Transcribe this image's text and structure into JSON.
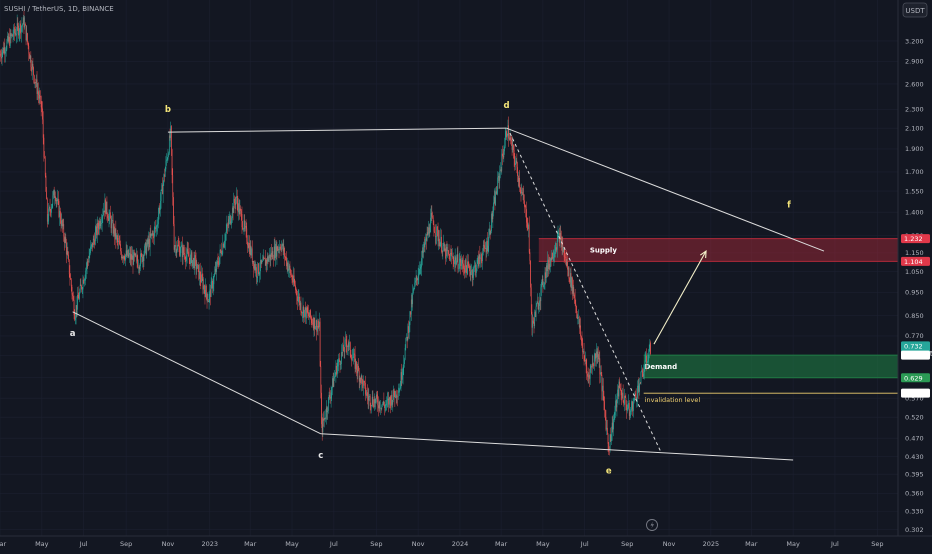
{
  "header": {
    "symbol": "SUSHI / TetherUS, 1D, BINANCE",
    "currency_button": "USDT"
  },
  "colors": {
    "background": "#131722",
    "up": "#26a69a",
    "down": "#ef5350",
    "supply": "#b22a3a",
    "demand": "#1e7a43",
    "lines": "#d8d8d8"
  },
  "chart_data": {
    "type": "candlestick",
    "price_axis": {
      "scale": "log",
      "range": [
        0.293,
        3.9
      ],
      "ticks": [
        3.2,
        2.9,
        2.6,
        2.3,
        2.1,
        1.9,
        1.7,
        1.55,
        1.4,
        1.25,
        1.15,
        1.05,
        0.95,
        0.85,
        0.77,
        0.7,
        0.63,
        0.57,
        0.52,
        0.47,
        0.43,
        0.395,
        0.36,
        0.33,
        0.302
      ],
      "tick_labels": [
        "3.200",
        "2.900",
        "2.600",
        "2.300",
        "2.100",
        "1.900",
        "1.700",
        "1.550",
        "1.400",
        "1.250",
        "1.150",
        "1.050",
        "0.950",
        "0.850",
        "0.770",
        "0.700",
        "0.630",
        "0.570",
        "0.520",
        "0.470",
        "0.430",
        "0.395",
        "0.360",
        "0.330",
        "0.302"
      ]
    },
    "time_axis": {
      "range": [
        "2022-03-01",
        "2025-10-01"
      ],
      "ticks": [
        {
          "date": "2022-03-01",
          "label": "Mar"
        },
        {
          "date": "2022-05-01",
          "label": "May"
        },
        {
          "date": "2022-07-01",
          "label": "Jul"
        },
        {
          "date": "2022-09-01",
          "label": "Sep"
        },
        {
          "date": "2022-11-01",
          "label": "Nov"
        },
        {
          "date": "2023-01-01",
          "label": "2023"
        },
        {
          "date": "2023-03-01",
          "label": "Mar"
        },
        {
          "date": "2023-05-01",
          "label": "May"
        },
        {
          "date": "2023-07-01",
          "label": "Jul"
        },
        {
          "date": "2023-09-01",
          "label": "Sep"
        },
        {
          "date": "2023-11-01",
          "label": "Nov"
        },
        {
          "date": "2024-01-01",
          "label": "2024"
        },
        {
          "date": "2024-03-01",
          "label": "Mar"
        },
        {
          "date": "2024-05-01",
          "label": "May"
        },
        {
          "date": "2024-07-01",
          "label": "Jul"
        },
        {
          "date": "2024-09-01",
          "label": "Sep"
        },
        {
          "date": "2024-11-01",
          "label": "Nov"
        },
        {
          "date": "2025-01-01",
          "label": "2025"
        },
        {
          "date": "2025-03-01",
          "label": "Mar"
        },
        {
          "date": "2025-05-01",
          "label": "May"
        },
        {
          "date": "2025-07-01",
          "label": "Jul"
        },
        {
          "date": "2025-09-01",
          "label": "Sep"
        }
      ]
    },
    "price_path": [
      {
        "date": "2022-03-01",
        "price": 3.0
      },
      {
        "date": "2022-03-20",
        "price": 3.3
      },
      {
        "date": "2022-04-05",
        "price": 3.5
      },
      {
        "date": "2022-04-15",
        "price": 2.9
      },
      {
        "date": "2022-05-01",
        "price": 2.3
      },
      {
        "date": "2022-05-09",
        "price": 1.35
      },
      {
        "date": "2022-05-20",
        "price": 1.55
      },
      {
        "date": "2022-06-05",
        "price": 1.2
      },
      {
        "date": "2022-06-18",
        "price": 0.86
      },
      {
        "date": "2022-07-10",
        "price": 1.15
      },
      {
        "date": "2022-08-01",
        "price": 1.45
      },
      {
        "date": "2022-08-25",
        "price": 1.15
      },
      {
        "date": "2022-09-20",
        "price": 1.1
      },
      {
        "date": "2022-10-15",
        "price": 1.3
      },
      {
        "date": "2022-11-05",
        "price": 2.05
      },
      {
        "date": "2022-11-10",
        "price": 1.2
      },
      {
        "date": "2022-12-10",
        "price": 1.1
      },
      {
        "date": "2022-12-30",
        "price": 0.92
      },
      {
        "date": "2023-01-20",
        "price": 1.2
      },
      {
        "date": "2023-02-08",
        "price": 1.5
      },
      {
        "date": "2023-03-10",
        "price": 1.05
      },
      {
        "date": "2023-04-15",
        "price": 1.2
      },
      {
        "date": "2023-05-15",
        "price": 0.88
      },
      {
        "date": "2023-06-10",
        "price": 0.8
      },
      {
        "date": "2023-06-13",
        "price": 0.49
      },
      {
        "date": "2023-07-05",
        "price": 0.66
      },
      {
        "date": "2023-07-20",
        "price": 0.75
      },
      {
        "date": "2023-08-20",
        "price": 0.57
      },
      {
        "date": "2023-09-15",
        "price": 0.55
      },
      {
        "date": "2023-10-05",
        "price": 0.6
      },
      {
        "date": "2023-10-25",
        "price": 0.95
      },
      {
        "date": "2023-11-20",
        "price": 1.35
      },
      {
        "date": "2023-12-10",
        "price": 1.15
      },
      {
        "date": "2023-12-30",
        "price": 1.1
      },
      {
        "date": "2024-01-20",
        "price": 1.05
      },
      {
        "date": "2024-02-10",
        "price": 1.2
      },
      {
        "date": "2024-03-10",
        "price": 2.1
      },
      {
        "date": "2024-03-25",
        "price": 1.7
      },
      {
        "date": "2024-04-10",
        "price": 1.3
      },
      {
        "date": "2024-04-15",
        "price": 0.8
      },
      {
        "date": "2024-05-05",
        "price": 1.05
      },
      {
        "date": "2024-05-25",
        "price": 1.25
      },
      {
        "date": "2024-06-15",
        "price": 0.95
      },
      {
        "date": "2024-07-05",
        "price": 0.63
      },
      {
        "date": "2024-07-20",
        "price": 0.72
      },
      {
        "date": "2024-08-05",
        "price": 0.45
      },
      {
        "date": "2024-08-20",
        "price": 0.6
      },
      {
        "date": "2024-09-05",
        "price": 0.53
      },
      {
        "date": "2024-09-20",
        "price": 0.62
      },
      {
        "date": "2024-10-05",
        "price": 0.73
      }
    ],
    "zones": [
      {
        "name": "Supply",
        "from": "2024-04-25",
        "to": "2025-10-01",
        "low": 1.104,
        "high": 1.232,
        "color": "#b22a3a",
        "fill_opacity": 0.45
      },
      {
        "name": "Demand",
        "from": "2024-09-25",
        "to": "2025-10-01",
        "low": 0.629,
        "high": 0.702,
        "color": "#1e7a43",
        "fill_opacity": 0.6
      }
    ],
    "invalidation": {
      "label": "invalidation level",
      "price": 0.584,
      "from": "2024-09-25",
      "to": "2025-10-01"
    },
    "wave_points": [
      {
        "label": "a",
        "date": "2022-06-15",
        "price": 0.865,
        "label_pos": "below",
        "color": "white"
      },
      {
        "label": "b",
        "date": "2022-11-01",
        "price": 2.06,
        "label_pos": "above",
        "color": "yellow"
      },
      {
        "label": "c",
        "date": "2023-06-12",
        "price": 0.48,
        "label_pos": "below",
        "color": "white"
      },
      {
        "label": "d",
        "date": "2024-03-09",
        "price": 2.1,
        "label_pos": "above",
        "color": "yellow"
      },
      {
        "label": "e",
        "date": "2024-08-05",
        "price": 0.445,
        "label_pos": "below",
        "color": "yellow"
      },
      {
        "label": "f",
        "date": "2025-04-25",
        "price": 1.3,
        "label_pos": "above",
        "color": "yellow"
      }
    ],
    "trendlines": [
      {
        "from": {
          "date": "2022-06-15",
          "price": 0.865
        },
        "to": {
          "date": "2023-06-12",
          "price": 0.48
        },
        "style": "solid"
      },
      {
        "from": {
          "date": "2023-06-12",
          "price": 0.48
        },
        "to": {
          "date": "2025-05-01",
          "price": 0.423
        },
        "style": "solid"
      },
      {
        "from": {
          "date": "2022-11-01",
          "price": 2.06
        },
        "to": {
          "date": "2024-03-09",
          "price": 2.1
        },
        "style": "solid"
      },
      {
        "from": {
          "date": "2024-03-09",
          "price": 2.1
        },
        "to": {
          "date": "2025-06-15",
          "price": 1.16
        },
        "style": "solid"
      },
      {
        "from": {
          "date": "2024-03-14",
          "price": 2.05
        },
        "to": {
          "date": "2024-10-20",
          "price": 0.44
        },
        "style": "dashed"
      }
    ],
    "projection_arrow": {
      "from": {
        "date": "2024-10-10",
        "price": 0.74
      },
      "to": {
        "date": "2024-12-25",
        "price": 1.16
      }
    },
    "price_tags": [
      {
        "price": 1.232,
        "label": "1.232",
        "color": "#e0384a"
      },
      {
        "price": 1.104,
        "label": "1.104",
        "color": "#e0384a"
      },
      {
        "price": 0.732,
        "label": "0.732",
        "sub": "08:50:36",
        "color": "#26a69a"
      },
      {
        "price": 0.702,
        "label": "0.702",
        "color": "#ffffff",
        "text_color": "#131722"
      },
      {
        "price": 0.629,
        "label": "0.629",
        "color": "#2b9a55"
      },
      {
        "price": 0.584,
        "label": "0.584",
        "color": "#ffffff",
        "text_color": "#131722"
      }
    ]
  }
}
